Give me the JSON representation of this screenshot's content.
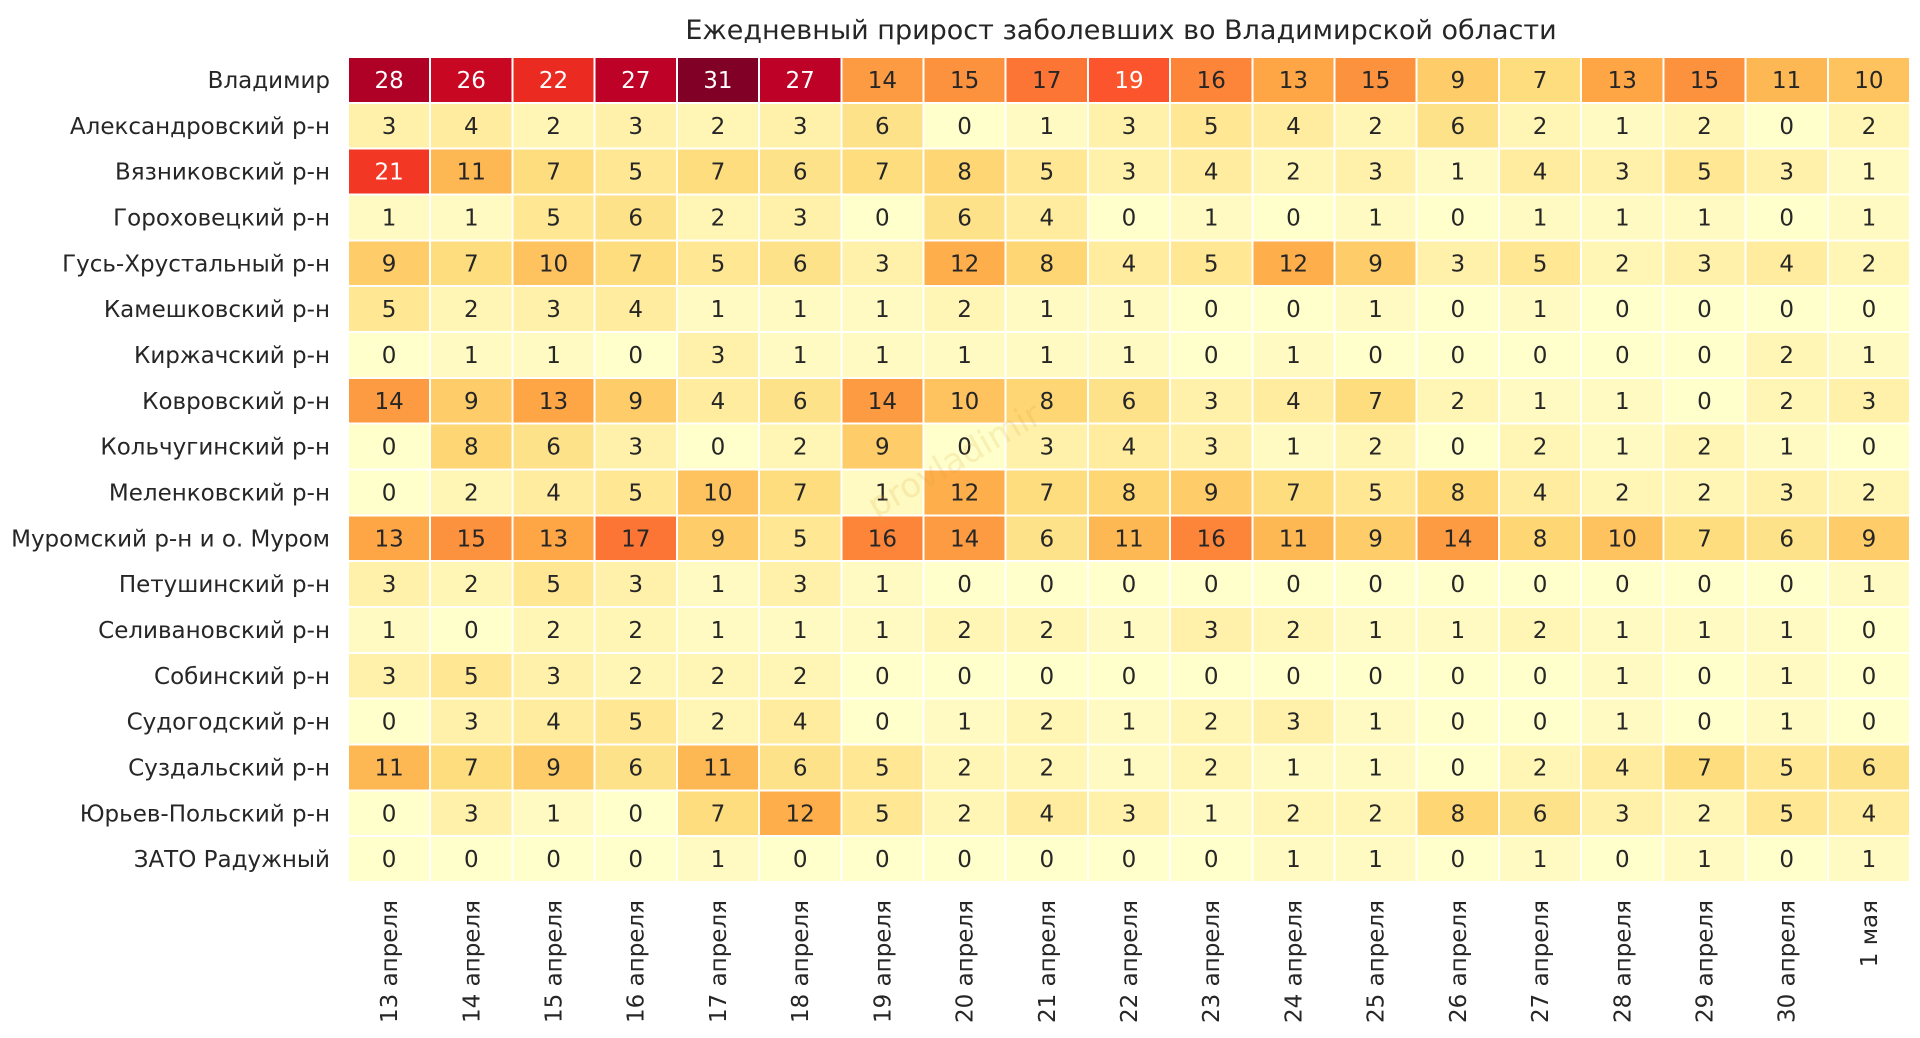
{
  "chart_data": {
    "type": "heatmap",
    "title": "Ежедневный прирост заболевших во Владимирской области",
    "xlabel": "",
    "ylabel": "",
    "watermark": "provladimir",
    "x": [
      "13 апреля",
      "14 апреля",
      "15 апреля",
      "16 апреля",
      "17 апреля",
      "18 апреля",
      "19 апреля",
      "20 апреля",
      "21 апреля",
      "22 апреля",
      "23 апреля",
      "24 апреля",
      "25 апреля",
      "26 апреля",
      "27 апреля",
      "28 апреля",
      "29 апреля",
      "30 апреля",
      "1 мая"
    ],
    "y": [
      "Владимир",
      "Александровский р-н",
      "Вязниковский р-н",
      "Гороховецкий р-н",
      "Гусь-Хрустальный р-н",
      "Камешковский р-н",
      "Киржачский р-н",
      "Ковровский р-н",
      "Кольчугинский р-н",
      "Меленковский р-н",
      "Муромский р-н и о. Муром",
      "Петушинский р-н",
      "Селивановский р-н",
      "Собинский р-н",
      "Судогодский р-н",
      "Суздальский р-н",
      "Юрьев-Польский р-н",
      "ЗАТО Радужный"
    ],
    "values": [
      [
        28,
        26,
        22,
        27,
        31,
        27,
        14,
        15,
        17,
        19,
        16,
        13,
        15,
        9,
        7,
        13,
        15,
        11,
        10
      ],
      [
        3,
        4,
        2,
        3,
        2,
        3,
        6,
        0,
        1,
        3,
        5,
        4,
        2,
        6,
        2,
        1,
        2,
        0,
        2
      ],
      [
        21,
        11,
        7,
        5,
        7,
        6,
        7,
        8,
        5,
        3,
        4,
        2,
        3,
        1,
        4,
        3,
        5,
        3,
        1
      ],
      [
        1,
        1,
        5,
        6,
        2,
        3,
        0,
        6,
        4,
        0,
        1,
        0,
        1,
        0,
        1,
        1,
        1,
        0,
        1
      ],
      [
        9,
        7,
        10,
        7,
        5,
        6,
        3,
        12,
        8,
        4,
        5,
        12,
        9,
        3,
        5,
        2,
        3,
        4,
        2
      ],
      [
        5,
        2,
        3,
        4,
        1,
        1,
        1,
        2,
        1,
        1,
        0,
        0,
        1,
        0,
        1,
        0,
        0,
        0,
        0
      ],
      [
        0,
        1,
        1,
        0,
        3,
        1,
        1,
        1,
        1,
        1,
        0,
        1,
        0,
        0,
        0,
        0,
        0,
        2,
        1
      ],
      [
        14,
        9,
        13,
        9,
        4,
        6,
        14,
        10,
        8,
        6,
        3,
        4,
        7,
        2,
        1,
        1,
        0,
        2,
        3
      ],
      [
        0,
        8,
        6,
        3,
        0,
        2,
        9,
        0,
        3,
        4,
        3,
        1,
        2,
        0,
        2,
        1,
        2,
        1,
        0
      ],
      [
        0,
        2,
        4,
        5,
        10,
        7,
        1,
        12,
        7,
        8,
        9,
        7,
        5,
        8,
        4,
        2,
        2,
        3,
        2
      ],
      [
        13,
        15,
        13,
        17,
        9,
        5,
        16,
        14,
        6,
        11,
        16,
        11,
        9,
        14,
        8,
        10,
        7,
        6,
        9
      ],
      [
        3,
        2,
        5,
        3,
        1,
        3,
        1,
        0,
        0,
        0,
        0,
        0,
        0,
        0,
        0,
        0,
        0,
        0,
        1
      ],
      [
        1,
        0,
        2,
        2,
        1,
        1,
        1,
        2,
        2,
        1,
        3,
        2,
        1,
        1,
        2,
        1,
        1,
        1,
        0
      ],
      [
        3,
        5,
        3,
        2,
        2,
        2,
        0,
        0,
        0,
        0,
        0,
        0,
        0,
        0,
        0,
        1,
        0,
        1,
        0
      ],
      [
        0,
        3,
        4,
        5,
        2,
        4,
        0,
        1,
        2,
        1,
        2,
        3,
        1,
        0,
        0,
        1,
        0,
        1,
        0
      ],
      [
        11,
        7,
        9,
        6,
        11,
        6,
        5,
        2,
        2,
        1,
        2,
        1,
        1,
        0,
        2,
        4,
        7,
        5,
        6
      ],
      [
        0,
        3,
        1,
        0,
        7,
        12,
        5,
        2,
        4,
        3,
        1,
        2,
        2,
        8,
        6,
        3,
        2,
        5,
        4
      ],
      [
        0,
        0,
        0,
        0,
        1,
        0,
        0,
        0,
        0,
        0,
        0,
        1,
        1,
        0,
        1,
        0,
        1,
        0,
        1
      ]
    ],
    "vmin": 0,
    "vmax": 31,
    "colormap": "YlOrRd",
    "colorbar": false,
    "cell_labels": true,
    "grid_color": "#ffffff"
  }
}
